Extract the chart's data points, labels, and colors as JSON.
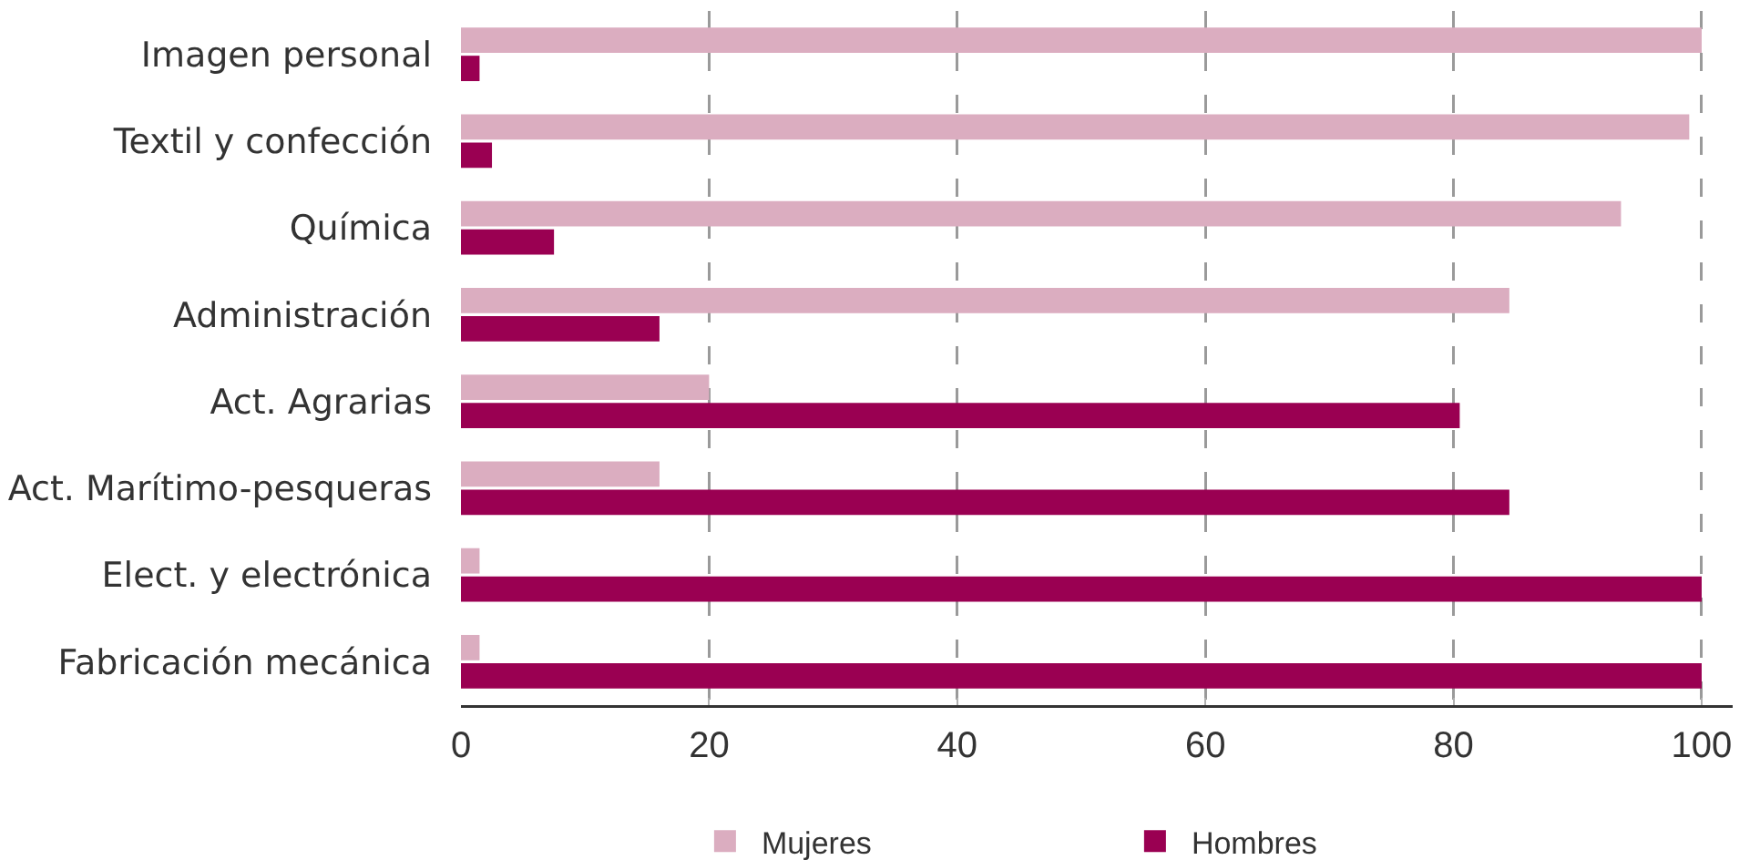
{
  "chart_data": {
    "type": "bar",
    "orientation": "horizontal",
    "categories": [
      "Imagen personal",
      "Textil y confección",
      "Química",
      "Administración",
      "Act. Agrarias",
      "Act. Marítimo-pesqueras",
      "Elect. y electrónica",
      "Fabricación mecánica"
    ],
    "series": [
      {
        "name": "Mujeres",
        "color": "#dbadc0",
        "values": [
          100,
          99,
          93.5,
          84.5,
          20,
          16,
          1.5,
          1.5
        ]
      },
      {
        "name": "Hombres",
        "color": "#9a0052",
        "values": [
          1.5,
          2.5,
          7.5,
          16,
          80.5,
          84.5,
          100,
          100
        ]
      }
    ],
    "xlim": [
      0,
      102.5
    ],
    "xticks": [
      0,
      20,
      40,
      60,
      80,
      100
    ],
    "grid": "x",
    "legend": "bottom"
  }
}
